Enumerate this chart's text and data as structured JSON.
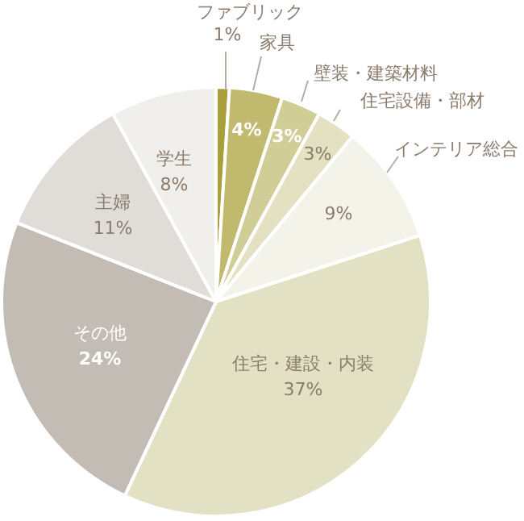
{
  "chart_data": {
    "type": "pie",
    "categories": [
      "ファブリック",
      "家具",
      "壁装・建築材料",
      "住宅設備・部材",
      "インテリア総合",
      "住宅・建設・内装",
      "その他",
      "主婦",
      "学生"
    ],
    "values": [
      1,
      4,
      3,
      3,
      9,
      37,
      24,
      11,
      8
    ],
    "value_labels": [
      "1%",
      "4%",
      "3%",
      "3%",
      "9%",
      "37%",
      "24%",
      "11%",
      "8%"
    ],
    "colors": [
      "#a9a03c",
      "#c0b96e",
      "#d1cd97",
      "#e3e1c2",
      "#f4f3ea",
      "#e3e1c3",
      "#c3bcb5",
      "#e0ddd9",
      "#f1efec"
    ]
  }
}
